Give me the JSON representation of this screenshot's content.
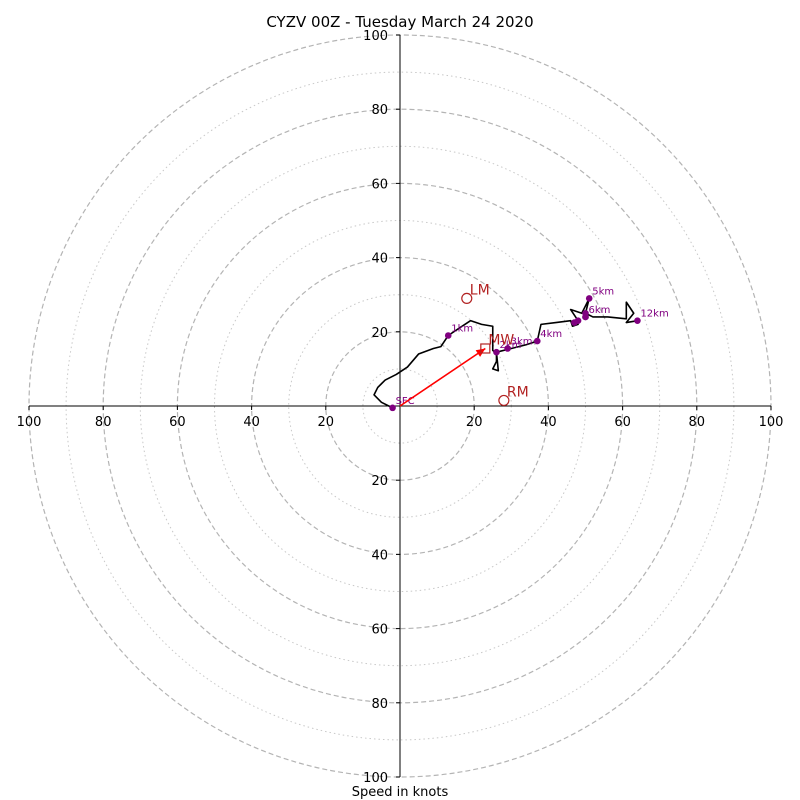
{
  "chart_data": {
    "type": "hodograph",
    "title": "CYZV 00Z - Tuesday March 24 2020",
    "xlabel": "Speed in knots",
    "xlim": [
      -100,
      100
    ],
    "ylim": [
      -100,
      100
    ],
    "rings_dashed": [
      20,
      40,
      60,
      80,
      100
    ],
    "rings_dotted": [
      10,
      30,
      50,
      70,
      90
    ],
    "x_ticks": [
      "100",
      "80",
      "60",
      "40",
      "20",
      "20",
      "40",
      "60",
      "80",
      "100"
    ],
    "y_ticks": [
      "100",
      "80",
      "60",
      "40",
      "20",
      "20",
      "40",
      "60",
      "80",
      "100"
    ],
    "trace": {
      "color": "#000000",
      "points": [
        [
          -2,
          -0.5
        ],
        [
          -5,
          1
        ],
        [
          -7,
          3
        ],
        [
          -6,
          5
        ],
        [
          -4,
          7
        ],
        [
          -1,
          8.5
        ],
        [
          2,
          10.5
        ],
        [
          5,
          14
        ],
        [
          9,
          15.5
        ],
        [
          11,
          16
        ],
        [
          13,
          19
        ],
        [
          16,
          21
        ],
        [
          19,
          23
        ],
        [
          22,
          22
        ],
        [
          25,
          21.5
        ],
        [
          25,
          15
        ],
        [
          26,
          14
        ],
        [
          26,
          12
        ],
        [
          25,
          10
        ],
        [
          26.5,
          9.5
        ],
        [
          26,
          14.5
        ],
        [
          30,
          15.5
        ],
        [
          34,
          16.5
        ],
        [
          37,
          17.5
        ],
        [
          38,
          22
        ],
        [
          42,
          22.5
        ],
        [
          46,
          23
        ],
        [
          46.5,
          21.5
        ],
        [
          48,
          22
        ],
        [
          48,
          23
        ],
        [
          46,
          26
        ],
        [
          49,
          25
        ],
        [
          50,
          27
        ],
        [
          51,
          29
        ],
        [
          50,
          25
        ],
        [
          52,
          24
        ],
        [
          56,
          24
        ],
        [
          61,
          23.5
        ],
        [
          61,
          28
        ],
        [
          63,
          25
        ],
        [
          61,
          22.5
        ],
        [
          64,
          23
        ]
      ]
    },
    "height_markers": [
      {
        "label": "SFC",
        "x": -2,
        "y": -0.5
      },
      {
        "label": "1km",
        "x": 13,
        "y": 19
      },
      {
        "label": "2km",
        "x": 26,
        "y": 14.5
      },
      {
        "label": "3km",
        "x": 29,
        "y": 15.5
      },
      {
        "label": "4km",
        "x": 37,
        "y": 17.5
      },
      {
        "label": "",
        "x": 47,
        "y": 22.5
      },
      {
        "label": "",
        "x": 48,
        "y": 23
      },
      {
        "label": "",
        "x": 50,
        "y": 24
      },
      {
        "label": "",
        "x": 50,
        "y": 25
      },
      {
        "label": "5km",
        "x": 51,
        "y": 29
      },
      {
        "label": "6km",
        "x": 50,
        "y": 24
      },
      {
        "label": "12km",
        "x": 64,
        "y": 23
      }
    ],
    "storm_motion": {
      "color": "#b22222",
      "LM": {
        "label": "LM",
        "x": 18,
        "y": 29
      },
      "MW": {
        "label": "MW",
        "x": 23,
        "y": 15.5
      },
      "RM": {
        "label": "RM",
        "x": 28,
        "y": 1.5
      }
    },
    "shear_vector": {
      "color": "#ff0000",
      "from": [
        0,
        0
      ],
      "to": [
        23,
        15.5
      ]
    }
  }
}
